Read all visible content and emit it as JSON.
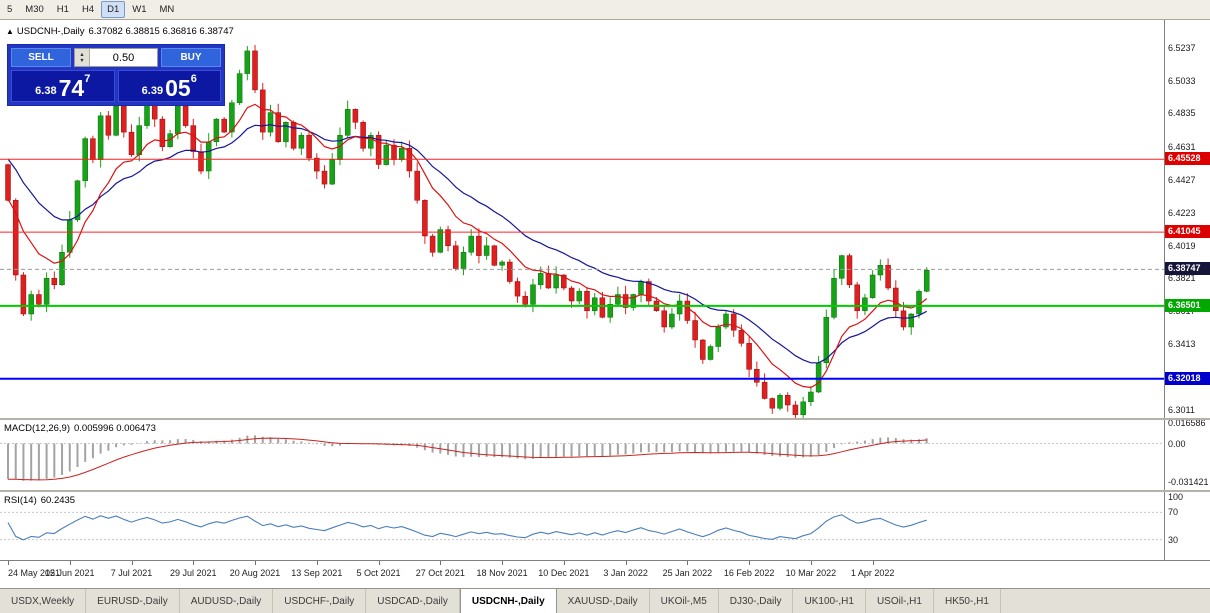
{
  "toolbar": {
    "timeframes": [
      {
        "label": "5",
        "active": false
      },
      {
        "label": "M30",
        "active": false
      },
      {
        "label": "H1",
        "active": false
      },
      {
        "label": "H4",
        "active": false
      },
      {
        "label": "D1",
        "active": true
      },
      {
        "label": "W1",
        "active": false
      },
      {
        "label": "MN",
        "active": false
      }
    ]
  },
  "chart": {
    "collapse_icon": "▲",
    "title": "USDCNH-,Daily",
    "ohlc_text": "6.37082 6.38815 6.36816 6.38747"
  },
  "trade_panel": {
    "sell_label": "SELL",
    "buy_label": "BUY",
    "lot_size": "0.50",
    "spin_up_icon": "▲",
    "spin_down_icon": "▼",
    "sell_price_int": "6.38",
    "sell_price_pips": "74",
    "sell_price_point": "7",
    "buy_price_int": "6.39",
    "buy_price_pips": "05",
    "buy_price_point": "6"
  },
  "indicators": {
    "macd_label": "MACD(12,26,9)",
    "macd_values": "0.005996 0.006473",
    "rsi_label": "RSI(14)",
    "rsi_value": "60.2435"
  },
  "tabs": [
    {
      "label": "USDX,Weekly",
      "active": false
    },
    {
      "label": "EURUSD-,Daily",
      "active": false
    },
    {
      "label": "AUDUSD-,Daily",
      "active": false
    },
    {
      "label": "USDCHF-,Daily",
      "active": false
    },
    {
      "label": "USDCAD-,Daily",
      "active": false
    },
    {
      "label": "USDCNH-,Daily",
      "active": true
    },
    {
      "label": "XAUUSD-,Daily",
      "active": false
    },
    {
      "label": "UKOil-,M5",
      "active": false
    },
    {
      "label": "DJ30-,Daily",
      "active": false
    },
    {
      "label": "UK100-,H1",
      "active": false
    },
    {
      "label": "USOil-,H1",
      "active": false
    },
    {
      "label": "HK50-,H1",
      "active": false
    }
  ],
  "chart_data": {
    "type": "candlestick",
    "symbol": "USDCNH-",
    "timeframe": "Daily",
    "current_bar": {
      "open": 6.37082,
      "high": 6.38815,
      "low": 6.36816,
      "close": 6.38747
    },
    "bid": 6.38747,
    "ask": 6.39056,
    "y_range": [
      6.296,
      6.541
    ],
    "up_color": "#17a317",
    "down_color": "#e01f1f",
    "first_open": 6.452,
    "closes": [
      6.43,
      6.384,
      6.36,
      6.372,
      6.366,
      6.382,
      6.378,
      6.398,
      6.418,
      6.442,
      6.468,
      6.455,
      6.482,
      6.47,
      6.488,
      6.472,
      6.458,
      6.476,
      6.492,
      6.48,
      6.463,
      6.471,
      6.488,
      6.476,
      6.46,
      6.448,
      6.466,
      6.48,
      6.472,
      6.49,
      6.508,
      6.522,
      6.498,
      6.472,
      6.484,
      6.466,
      6.478,
      6.462,
      6.47,
      6.456,
      6.448,
      6.44,
      6.455,
      6.47,
      6.486,
      6.478,
      6.462,
      6.47,
      6.452,
      6.464,
      6.455,
      6.462,
      6.448,
      6.43,
      6.408,
      6.398,
      6.412,
      6.402,
      6.388,
      6.398,
      6.408,
      6.396,
      6.402,
      6.39,
      6.392,
      6.38,
      6.371,
      6.366,
      6.378,
      6.385,
      6.376,
      6.384,
      6.376,
      6.368,
      6.374,
      6.362,
      6.37,
      6.358,
      6.366,
      6.372,
      6.364,
      6.372,
      6.38,
      6.368,
      6.362,
      6.352,
      6.36,
      6.368,
      6.356,
      6.344,
      6.332,
      6.34,
      6.352,
      6.36,
      6.35,
      6.342,
      6.326,
      6.318,
      6.308,
      6.302,
      6.31,
      6.304,
      6.298,
      6.306,
      6.312,
      6.33,
      6.358,
      6.382,
      6.396,
      6.378,
      6.362,
      6.37,
      6.384,
      6.39,
      6.376,
      6.362,
      6.352,
      6.36,
      6.374,
      6.387
    ],
    "price_axis_ticks": [
      "6.5237",
      "6.5033",
      "6.4835",
      "6.4631",
      "6.4427",
      "6.4223",
      "6.4019",
      "6.3821",
      "6.3617",
      "6.3413",
      "6.3011"
    ],
    "levels": [
      {
        "price": 6.45528,
        "color": "#ff2020",
        "width": 1
      },
      {
        "price": 6.41045,
        "color": "#ff2020",
        "width": 1
      },
      {
        "price": 6.36501,
        "color": "#00cc00",
        "width": 2
      },
      {
        "price": 6.32018,
        "color": "#0000ff",
        "width": 2
      }
    ],
    "badges": [
      {
        "label": "6.45528",
        "price": 6.45528,
        "bg": "#dd0000"
      },
      {
        "label": "6.41045",
        "price": 6.41045,
        "bg": "#dd0000"
      },
      {
        "label": "6.38747",
        "price": 6.38747,
        "bg": "#15153a"
      },
      {
        "label": "6.36501",
        "price": 6.36501,
        "bg": "#00a800"
      },
      {
        "label": "6.32018",
        "price": 6.32018,
        "bg": "#0000cc"
      }
    ],
    "ma": {
      "fast_period": 10,
      "fast_color": "#dd1111",
      "slow_period": 21,
      "slow_color": "#15159b"
    },
    "macd": {
      "params": [
        12,
        26,
        9
      ],
      "hist_color": "#a3a3a3",
      "signal_color": "#cc2222",
      "range": [
        -0.0375,
        0.019
      ],
      "axis": [
        {
          "label": "0.016586",
          "v": 0.016586
        },
        {
          "label": "0.00",
          "v": 0
        },
        {
          "label": "-0.031421",
          "v": -0.031421
        }
      ]
    },
    "rsi": {
      "period": 14,
      "line_color": "#4a7ebb",
      "levels": [
        70,
        30
      ],
      "axis": [
        {
          "label": "100",
          "v": 100
        },
        {
          "label": "70",
          "v": 70
        },
        {
          "label": "30",
          "v": 30
        }
      ]
    },
    "dates": [
      "24 May 2021",
      "15 Jun 2021",
      "7 Jul 2021",
      "29 Jul 2021",
      "20 Aug 2021",
      "13 Sep 2021",
      "5 Oct 2021",
      "27 Oct 2021",
      "18 Nov 2021",
      "10 Dec 2021",
      "3 Jan 2022",
      "25 Jan 2022",
      "16 Feb 2022",
      "10 Mar 2022",
      "1 Apr 2022"
    ]
  }
}
